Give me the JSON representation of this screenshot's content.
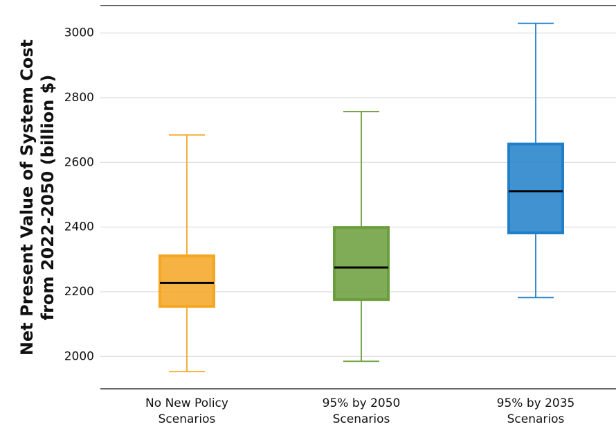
{
  "chart_data": {
    "type": "box",
    "y_label": [
      "Net Present Value of System Cost",
      "from 2022-2050 (billion $)"
    ],
    "categories": [
      [
        "No New Policy",
        "Scenarios"
      ],
      [
        "95% by 2050",
        "Scenarios"
      ],
      [
        "95% by 2035",
        "Scenarios"
      ]
    ],
    "boxes": [
      {
        "min": 1953,
        "q1": 2155,
        "median": 2227,
        "q3": 2311,
        "max": 2685,
        "color": "#f5a623"
      },
      {
        "min": 1985,
        "q1": 2176,
        "median": 2275,
        "q3": 2399,
        "max": 2757,
        "color": "#6a9e3a"
      },
      {
        "min": 2182,
        "q1": 2382,
        "median": 2511,
        "q3": 2657,
        "max": 3030,
        "color": "#1f7fc9"
      }
    ],
    "ylim": [
      1900,
      3085
    ],
    "yticks": [
      2000,
      2200,
      2400,
      2600,
      2800,
      3000
    ],
    "grid": true
  }
}
